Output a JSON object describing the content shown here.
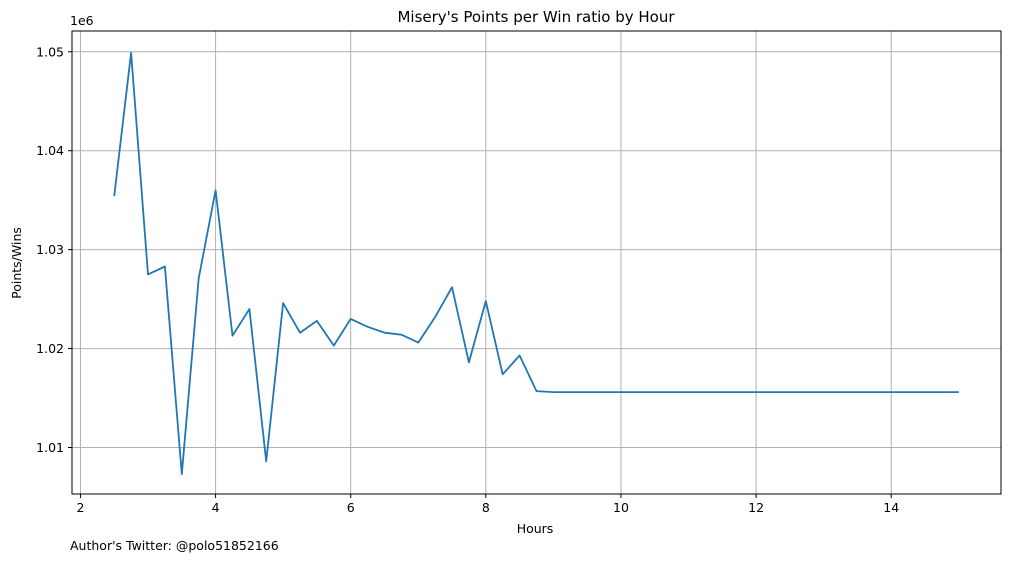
{
  "chart_data": {
    "type": "line",
    "title": "Misery's Points per Win ratio by Hour",
    "xlabel": "Hours",
    "ylabel": "Points/Wins",
    "y_offset_label": "1e6",
    "footer": "Author's Twitter: @polo51852166",
    "xlim": [
      1.875,
      15.625
    ],
    "ylim": [
      1.0053,
      1.0521
    ],
    "x_ticks": [
      2,
      4,
      6,
      8,
      10,
      12,
      14
    ],
    "y_ticks": [
      1.01,
      1.02,
      1.03,
      1.04,
      1.05
    ],
    "x_tick_labels": [
      "2",
      "4",
      "6",
      "8",
      "10",
      "12",
      "14"
    ],
    "y_tick_labels": [
      "1.01",
      "1.02",
      "1.03",
      "1.04",
      "1.05"
    ],
    "grid": true,
    "line_color": "#1f77b4",
    "x": [
      2.5,
      2.75,
      3.0,
      3.25,
      3.5,
      3.75,
      4.0,
      4.25,
      4.5,
      4.75,
      5.0,
      5.25,
      5.5,
      5.75,
      6.0,
      6.25,
      6.5,
      6.75,
      7.0,
      7.25,
      7.5,
      7.75,
      8.0,
      8.25,
      8.5,
      8.75,
      9.0,
      15.0
    ],
    "y": [
      1.0354,
      1.0499,
      1.0275,
      1.0283,
      1.0073,
      1.0271,
      1.036,
      1.0213,
      1.024,
      1.0086,
      1.0246,
      1.0216,
      1.0228,
      1.0203,
      1.023,
      1.0222,
      1.0216,
      1.0214,
      1.0206,
      1.0232,
      1.0262,
      1.0186,
      1.0248,
      1.0174,
      1.0193,
      1.0157,
      1.0156,
      1.0156
    ]
  }
}
